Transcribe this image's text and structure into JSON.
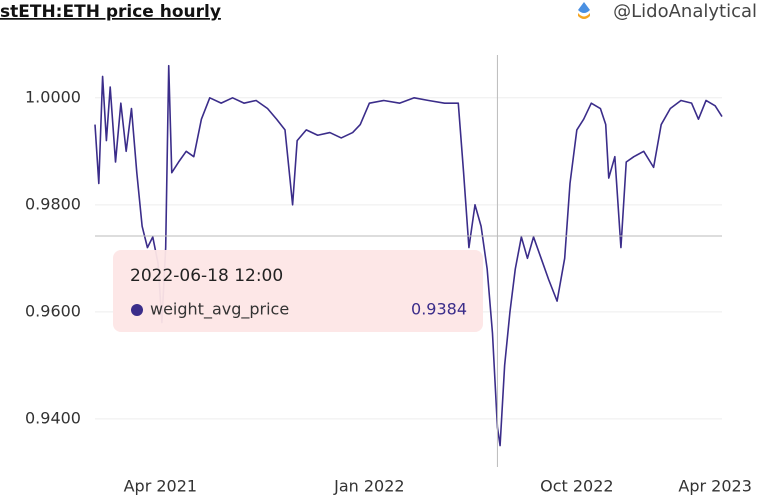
{
  "chart_data": {
    "type": "line",
    "title": "stETH:ETH price hourly",
    "author": "@LidoAnalytical",
    "x": [
      "2021-01-05",
      "2021-01-10",
      "2021-01-15",
      "2021-01-20",
      "2021-01-25",
      "2021-02-01",
      "2021-02-08",
      "2021-02-15",
      "2021-02-22",
      "2021-03-01",
      "2021-03-08",
      "2021-03-15",
      "2021-03-22",
      "2021-03-29",
      "2021-04-03",
      "2021-04-08",
      "2021-04-12",
      "2021-04-16",
      "2021-04-25",
      "2021-05-05",
      "2021-05-15",
      "2021-05-25",
      "2021-06-05",
      "2021-06-20",
      "2021-07-05",
      "2021-07-20",
      "2021-08-05",
      "2021-08-20",
      "2021-09-01",
      "2021-09-12",
      "2021-09-22",
      "2021-09-28",
      "2021-10-10",
      "2021-10-25",
      "2021-11-10",
      "2021-11-25",
      "2021-12-10",
      "2021-12-20",
      "2022-01-01",
      "2022-01-20",
      "2022-02-10",
      "2022-03-01",
      "2022-03-20",
      "2022-04-10",
      "2022-04-28",
      "2022-05-05",
      "2022-05-12",
      "2022-05-20",
      "2022-05-28",
      "2022-06-05",
      "2022-06-12",
      "2022-06-18 12:00",
      "2022-06-22",
      "2022-06-28",
      "2022-07-05",
      "2022-07-12",
      "2022-07-20",
      "2022-07-28",
      "2022-08-05",
      "2022-08-15",
      "2022-08-25",
      "2022-09-05",
      "2022-09-15",
      "2022-09-22",
      "2022-10-01",
      "2022-10-10",
      "2022-10-20",
      "2022-11-01",
      "2022-11-08",
      "2022-11-12",
      "2022-11-20",
      "2022-11-28",
      "2022-12-05",
      "2022-12-15",
      "2022-12-28",
      "2023-01-10",
      "2023-01-20",
      "2023-02-01",
      "2023-02-15",
      "2023-03-01",
      "2023-03-10",
      "2023-03-20",
      "2023-04-01",
      "2023-04-10"
    ],
    "series": [
      {
        "name": "weight_avg_price",
        "color": "#3b2d8a",
        "values": [
          0.995,
          0.984,
          1.004,
          0.992,
          1.002,
          0.988,
          0.999,
          0.99,
          0.998,
          0.986,
          0.976,
          0.972,
          0.974,
          0.969,
          0.958,
          0.972,
          1.006,
          0.986,
          0.988,
          0.99,
          0.989,
          0.996,
          1.0,
          0.999,
          1.0,
          0.999,
          0.9995,
          0.998,
          0.996,
          0.994,
          0.98,
          0.992,
          0.994,
          0.993,
          0.9935,
          0.9925,
          0.9935,
          0.995,
          0.999,
          0.9995,
          0.999,
          1.0,
          0.9995,
          0.999,
          0.999,
          0.986,
          0.972,
          0.98,
          0.976,
          0.968,
          0.956,
          0.9384,
          0.935,
          0.95,
          0.96,
          0.968,
          0.974,
          0.97,
          0.974,
          0.97,
          0.966,
          0.962,
          0.97,
          0.984,
          0.994,
          0.996,
          0.999,
          0.998,
          0.995,
          0.985,
          0.989,
          0.972,
          0.988,
          0.989,
          0.99,
          0.987,
          0.995,
          0.998,
          0.9995,
          0.999,
          0.996,
          0.9995,
          0.9985,
          0.9965
        ]
      }
    ],
    "xlim": [
      "2021-01-05",
      "2023-04-10"
    ],
    "xticks": [
      {
        "value": "2021-04-01",
        "label": "Apr 2021"
      },
      {
        "value": "2022-01-01",
        "label": "Jan 2022"
      },
      {
        "value": "2022-10-01",
        "label": "Oct 2022"
      },
      {
        "value": "2023-04-01",
        "label": "Apr 2023"
      }
    ],
    "ylim": [
      0.931,
      1.008
    ],
    "yticks": [
      {
        "value": 0.94,
        "label": "0.9400"
      },
      {
        "value": 0.96,
        "label": "0.9600"
      },
      {
        "value": 0.98,
        "label": "0.9800"
      },
      {
        "value": 1,
        "label": "1.0000"
      }
    ],
    "grid": true
  }
}
